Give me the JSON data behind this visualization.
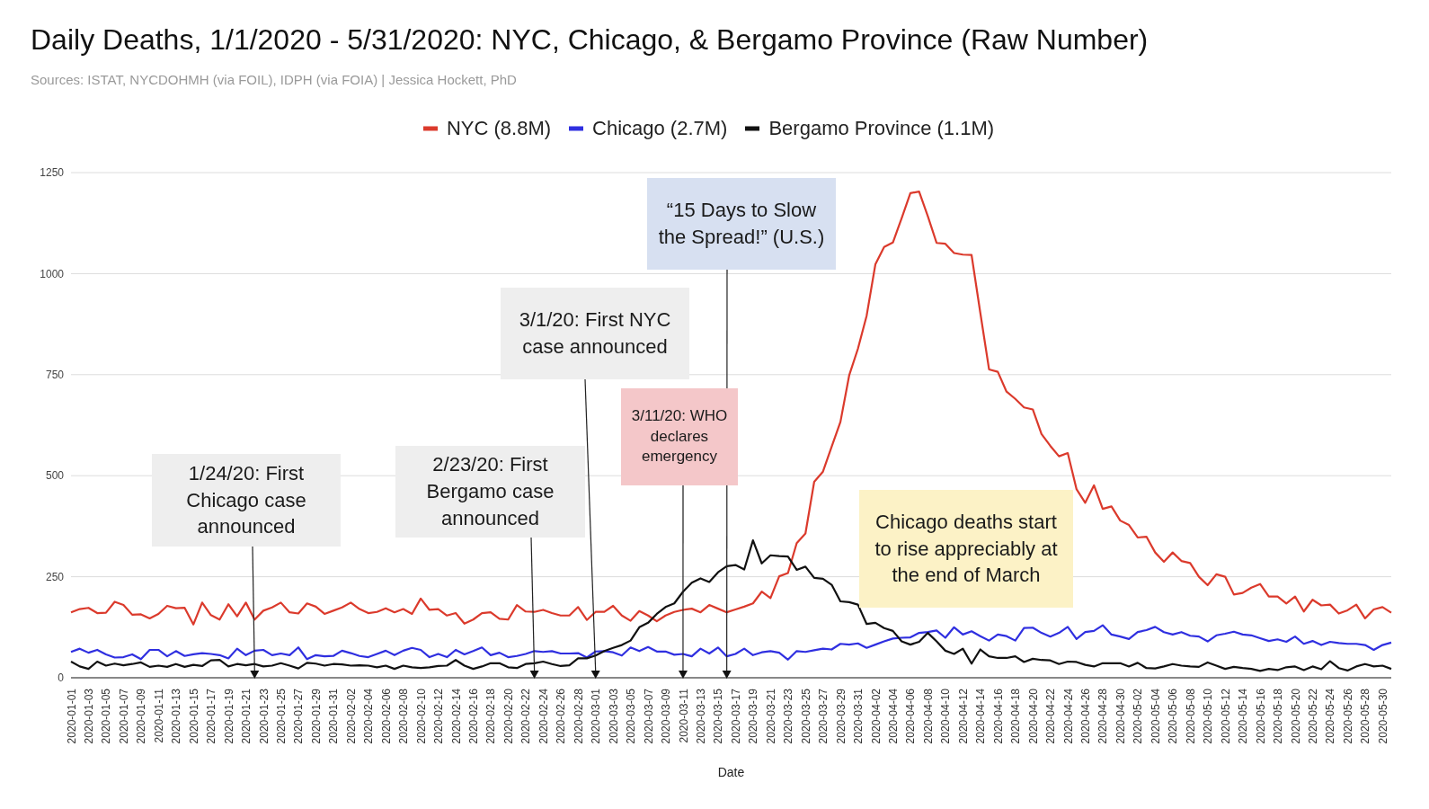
{
  "chart_data": {
    "type": "line",
    "title": "Daily Deaths, 1/1/2020 - 5/31/2020: NYC, Chicago, & Bergamo Province (Raw Number)",
    "subtitle": "Sources: ISTAT, NYCDOHMH (via FOIL), IDPH (via FOIA) | Jessica Hockett, PhD",
    "xlabel": "Date",
    "categories": [
      "2020-01-01",
      null,
      "2020-01-03",
      null,
      "2020-01-05",
      null,
      "2020-01-07",
      null,
      "2020-01-09",
      null,
      "2020-01-11",
      null,
      "2020-01-13",
      null,
      "2020-01-15",
      null,
      "2020-01-17",
      null,
      "2020-01-19",
      null,
      "2020-01-21",
      null,
      "2020-01-23",
      null,
      "2020-01-25",
      null,
      "2020-01-27",
      null,
      "2020-01-29",
      null,
      "2020-01-31",
      null,
      "2020-02-02",
      null,
      "2020-02-04",
      null,
      "2020-02-06",
      null,
      "2020-02-08",
      null,
      "2020-02-10",
      null,
      "2020-02-12",
      null,
      "2020-02-14",
      null,
      "2020-02-16",
      null,
      "2020-02-18",
      null,
      "2020-02-20",
      null,
      "2020-02-22",
      null,
      "2020-02-24",
      null,
      "2020-02-26",
      null,
      "2020-02-28",
      null,
      "2020-03-01",
      null,
      "2020-03-03",
      null,
      "2020-03-05",
      null,
      "2020-03-07",
      null,
      "2020-03-09",
      null,
      "2020-03-11",
      null,
      "2020-03-13",
      null,
      "2020-03-15",
      null,
      "2020-03-17",
      null,
      "2020-03-19",
      null,
      "2020-03-21",
      null,
      "2020-03-23",
      null,
      "2020-03-25",
      null,
      "2020-03-27",
      null,
      "2020-03-29",
      null,
      "2020-03-31",
      null,
      "2020-04-02",
      null,
      "2020-04-04",
      null,
      "2020-04-06",
      null,
      "2020-04-08",
      null,
      "2020-04-10",
      null,
      "2020-04-12",
      null,
      "2020-04-14",
      null,
      "2020-04-16",
      null,
      "2020-04-18",
      null,
      "2020-04-20",
      null,
      "2020-04-22",
      null,
      "2020-04-24",
      null,
      "2020-04-26",
      null,
      "2020-04-28",
      null,
      "2020-04-30",
      null,
      "2020-05-02",
      null,
      "2020-05-04",
      null,
      "2020-05-06",
      null,
      "2020-05-08",
      null,
      "2020-05-10",
      null,
      "2020-05-12",
      null,
      "2020-05-14",
      null,
      "2020-05-16",
      null,
      "2020-05-18",
      null,
      "2020-05-20",
      null,
      "2020-05-22",
      null,
      "2020-05-24",
      null,
      "2020-05-26",
      null,
      "2020-05-28",
      null,
      "2020-05-30",
      null
    ],
    "series": [
      {
        "name": "NYC (8.8M)",
        "color": "#db3a2c",
        "values": [
          162,
          170,
          173,
          160,
          161,
          188,
          180,
          156,
          157,
          147,
          158,
          178,
          172,
          173,
          132,
          186,
          155,
          144,
          182,
          152,
          186,
          144,
          166,
          174,
          186,
          162,
          159,
          184,
          176,
          158,
          166,
          174,
          186,
          170,
          160,
          163,
          172,
          162,
          170,
          158,
          196,
          168,
          170,
          154,
          160,
          134,
          144,
          160,
          162,
          146,
          144,
          180,
          164,
          163,
          168,
          160,
          154,
          154,
          175,
          143,
          163,
          163,
          178,
          154,
          141,
          165,
          154,
          140,
          154,
          163,
          168,
          171,
          162,
          180,
          171,
          162,
          169,
          176,
          184,
          213,
          197,
          251,
          259,
          333,
          357,
          485,
          510,
          572,
          633,
          748,
          814,
          896,
          1023,
          1066,
          1077,
          1137,
          1199,
          1203,
          1142,
          1076,
          1074,
          1051,
          1047,
          1046,
          903,
          763,
          757,
          708,
          690,
          669,
          664,
          603,
          574,
          548,
          556,
          467,
          433,
          476,
          418,
          424,
          389,
          378,
          347,
          349,
          310,
          287,
          310,
          289,
          284,
          250,
          229,
          256,
          250,
          206,
          210,
          223,
          232,
          201,
          201,
          184,
          201,
          164,
          193,
          179,
          181,
          159,
          167,
          181,
          147,
          169,
          175,
          161
        ]
      },
      {
        "name": "Chicago (2.7M)",
        "color": "#2f2fe0",
        "values": [
          64,
          72,
          62,
          69,
          58,
          50,
          51,
          58,
          46,
          69,
          69,
          53,
          66,
          54,
          58,
          61,
          59,
          56,
          48,
          72,
          56,
          67,
          69,
          56,
          60,
          56,
          75,
          46,
          56,
          53,
          54,
          67,
          61,
          54,
          51,
          59,
          67,
          56,
          67,
          74,
          69,
          51,
          59,
          51,
          69,
          58,
          66,
          75,
          56,
          62,
          51,
          54,
          59,
          66,
          64,
          66,
          60,
          60,
          61,
          50,
          65,
          66,
          63,
          55,
          75,
          66,
          76,
          65,
          65,
          57,
          59,
          53,
          72,
          60,
          75,
          53,
          59,
          72,
          56,
          63,
          66,
          62,
          45,
          66,
          64,
          68,
          72,
          70,
          84,
          82,
          85,
          74,
          82,
          90,
          97,
          99,
          100,
          111,
          113,
          117,
          99,
          125,
          107,
          115,
          103,
          92,
          107,
          103,
          92,
          123,
          124,
          111,
          102,
          111,
          126,
          96,
          113,
          116,
          130,
          107,
          102,
          96,
          113,
          118,
          126,
          113,
          107,
          113,
          104,
          102,
          90,
          105,
          109,
          114,
          107,
          105,
          98,
          91,
          95,
          89,
          102,
          84,
          91,
          81,
          89,
          86,
          84,
          84,
          81,
          69,
          81,
          87
        ]
      },
      {
        "name": "Bergamo Province (1.1M)",
        "color": "#111111",
        "values": [
          40,
          28,
          22,
          40,
          30,
          35,
          31,
          34,
          38,
          27,
          30,
          27,
          34,
          27,
          32,
          29,
          43,
          44,
          28,
          34,
          31,
          34,
          28,
          30,
          36,
          30,
          23,
          37,
          35,
          30,
          34,
          33,
          30,
          31,
          30,
          26,
          30,
          22,
          30,
          26,
          24,
          26,
          29,
          30,
          44,
          30,
          22,
          28,
          36,
          36,
          26,
          24,
          34,
          36,
          40,
          34,
          29,
          31,
          48,
          48,
          55,
          66,
          74,
          81,
          92,
          125,
          136,
          158,
          175,
          184,
          213,
          235,
          246,
          237,
          261,
          276,
          279,
          268,
          340,
          283,
          303,
          301,
          300,
          267,
          275,
          247,
          245,
          230,
          189,
          187,
          181,
          133,
          136,
          123,
          116,
          90,
          82,
          89,
          111,
          90,
          67,
          59,
          72,
          35,
          70,
          53,
          49,
          49,
          53,
          39,
          47,
          44,
          43,
          34,
          40,
          39,
          32,
          28,
          36,
          36,
          36,
          28,
          37,
          24,
          23,
          28,
          34,
          30,
          28,
          27,
          38,
          30,
          22,
          27,
          24,
          22,
          17,
          22,
          19,
          26,
          28,
          19,
          28,
          21,
          41,
          24,
          18,
          28,
          34,
          28,
          30,
          22
        ]
      }
    ],
    "ylim": [
      0,
      1250
    ],
    "yticks": [
      0,
      250,
      500,
      750,
      1000,
      1250
    ],
    "grid": "y",
    "legend": "top",
    "marker": "none",
    "line_style": "solid",
    "annotations": [
      "1/24/20: First Chicago case announced",
      "2/23/20: First Bergamo case announced",
      "3/1/20: First NYC case announced",
      "3/11/20: WHO declares emergency",
      "“15 Days to Slow the Spread!” (U.S.)",
      "Chicago deaths start to rise appreciably at the end of March"
    ]
  }
}
